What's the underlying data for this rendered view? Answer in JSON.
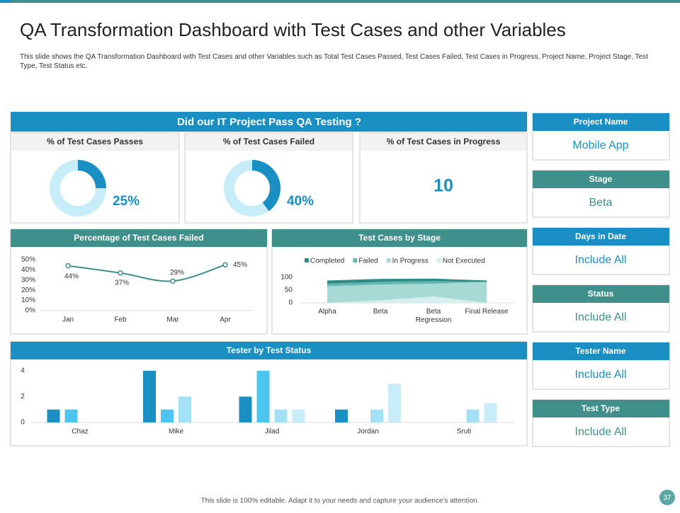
{
  "header": {
    "title": "QA Transformation Dashboard with Test Cases and other Variables",
    "subtitle": "This slide shows the QA Transformation Dashboard with Test Cases and other Variables such as Total Test Cases Passed, Test Cases Failed, Test Cases in Progress, Project Name, Project Stage, Test Type, Test Status etc."
  },
  "banner": "Did our IT Project Pass QA Testing ?",
  "kpis": [
    {
      "title": "% of Test Cases Passes",
      "chart_data": {
        "type": "donut",
        "values": [
          25
        ],
        "value_labels": [
          "25%"
        ],
        "color": "#1a8fc4",
        "track_color": "#c7edf9"
      }
    },
    {
      "title": "% of Test Cases Failed",
      "chart_data": {
        "type": "donut",
        "values": [
          40
        ],
        "value_labels": [
          "40%"
        ],
        "color": "#1a8fc4",
        "track_color": "#c7edf9"
      }
    },
    {
      "title": "% of Test Cases in Progress",
      "value": 10
    }
  ],
  "line_chart": {
    "type": "line",
    "title": "Percentage of Test Cases Failed",
    "categories": [
      "Jan",
      "Feb",
      "Mar",
      "Apr"
    ],
    "values": [
      44,
      37,
      29,
      45
    ],
    "value_labels": [
      "44%",
      "37%",
      "29%",
      "45%"
    ],
    "ylim": [
      0,
      50
    ],
    "yticks": [
      {
        "value": 0,
        "label": "0%"
      },
      {
        "value": 10,
        "label": "10%"
      },
      {
        "value": 20,
        "label": "20%"
      },
      {
        "value": 30,
        "label": "30%"
      },
      {
        "value": 40,
        "label": "40%"
      },
      {
        "value": 50,
        "label": "50%"
      }
    ],
    "color": "#3f8f8a"
  },
  "stage_chart": {
    "type": "area",
    "title": "Test Cases by Stage",
    "categories": [
      "Alpha",
      "Beta",
      "Beta Regression",
      "Final Release"
    ],
    "series": [
      {
        "name": "Completed",
        "color": "#2e8b85",
        "values": [
          13,
          12,
          10,
          6
        ]
      },
      {
        "name": "Failed",
        "color": "#66b7b1",
        "values": [
          10,
          10,
          10,
          0
        ]
      },
      {
        "name": "In Progress",
        "color": "#a8dad5",
        "values": [
          65,
          62,
          50,
          82
        ]
      },
      {
        "name": "Not Executed",
        "color": "#d6eeec",
        "values": [
          0,
          10,
          25,
          0
        ]
      }
    ],
    "ylim": [
      0,
      100
    ],
    "yticks": [
      0,
      50,
      100
    ],
    "stacked": true
  },
  "tester_chart": {
    "type": "bar",
    "title": "Tester by Test Status",
    "categories": [
      "Chaz",
      "Mike",
      "Jilad",
      "Jordan",
      "Sruti"
    ],
    "series": [
      {
        "color": "#1a8fc4",
        "values": [
          1,
          4,
          2,
          1,
          0
        ]
      },
      {
        "color": "#4cc6ef",
        "values": [
          1,
          1,
          4,
          0,
          0
        ]
      },
      {
        "color": "#a4e0f6",
        "values": [
          0,
          2,
          1,
          1,
          1
        ]
      },
      {
        "color": "#c8edf9",
        "values": [
          0,
          0,
          1,
          3,
          1.5
        ]
      }
    ],
    "ylim": [
      0,
      4
    ],
    "yticks": [
      0,
      2,
      4
    ]
  },
  "filters": [
    {
      "label": "Project Name",
      "value": "Mobile App"
    },
    {
      "label": "Stage",
      "value": "Beta"
    },
    {
      "label": "Days in Date",
      "value": "Include All"
    },
    {
      "label": "Status",
      "value": "Include All"
    },
    {
      "label": "Tester Name",
      "value": "Include All"
    },
    {
      "label": "Test Type",
      "value": "Include All"
    }
  ],
  "footer": {
    "note": "This slide is 100% editable.  Adapt it to your needs and capture your audience's attention.",
    "page": "37"
  }
}
